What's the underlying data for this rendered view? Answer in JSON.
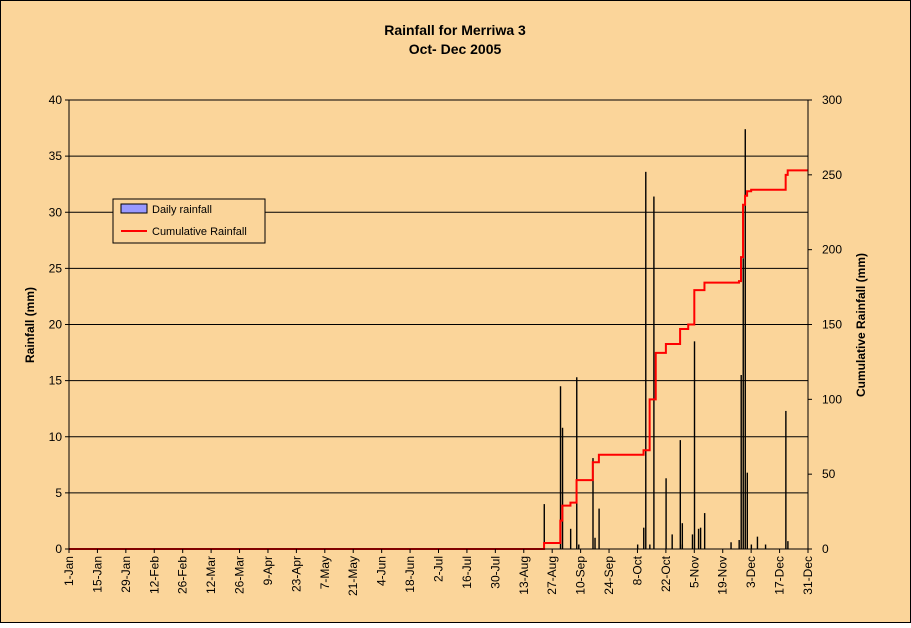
{
  "chart_data": {
    "type": "bar+line",
    "title": "Rainfall for Merriwa 3",
    "subtitle": "Oct- Dec 2005",
    "ylabel": "Rainfall (mm)",
    "y2label": "Cumulative Rainfall (mm)",
    "ylim": [
      0,
      40
    ],
    "y2lim": [
      0,
      300
    ],
    "yticks": [
      "0",
      "5",
      "10",
      "15",
      "20",
      "25",
      "30",
      "35",
      "40"
    ],
    "y2ticks": [
      "0",
      "50",
      "100",
      "150",
      "200",
      "250",
      "300"
    ],
    "xticks": [
      "1-Jan",
      "15-Jan",
      "29-Jan",
      "12-Feb",
      "26-Feb",
      "12-Mar",
      "26-Mar",
      "9-Apr",
      "23-Apr",
      "7-May",
      "21-May",
      "4-Jun",
      "18-Jun",
      "2-Jul",
      "16-Jul",
      "30-Jul",
      "13-Aug",
      "27-Aug",
      "10-Sep",
      "24-Sep",
      "8-Oct",
      "22-Oct",
      "5-Nov",
      "19-Nov",
      "3-Dec",
      "17-Dec",
      "31-Dec"
    ],
    "grid": true,
    "legend_position": "upper-left",
    "colors": {
      "background": "#fbd59a",
      "bar": "#000000",
      "bar_swatch": "#9999ff",
      "line": "#ff0000"
    },
    "series": [
      {
        "name": "Daily rainfall",
        "type": "bar",
        "axis": "left",
        "x": [
          "23-Aug",
          "31-Aug",
          "1-Sep",
          "5-Sep",
          "8-Sep",
          "9-Sep",
          "16-Sep",
          "17-Sep",
          "19-Sep",
          "30-Oct",
          "8-Oct",
          "11-Oct",
          "12-Oct",
          "14-Oct",
          "16-Oct",
          "22-Oct",
          "25-Oct",
          "29-Oct",
          "30-Oct",
          "4-Nov",
          "5-Nov",
          "7-Nov",
          "8-Nov",
          "10-Nov",
          "23-Nov",
          "27-Nov",
          "28-Nov",
          "29-Nov",
          "30-Nov",
          "1-Dec",
          "3-Dec",
          "6-Dec",
          "10-Dec",
          "20-Dec",
          "21-Dec"
        ],
        "values": [
          4.0,
          14.5,
          10.8,
          1.8,
          15.3,
          0.4,
          8.1,
          1.0,
          3.6,
          0.4,
          0.4,
          1.9,
          33.6,
          0.4,
          31.4,
          6.3,
          1.3,
          9.7,
          2.3,
          1.3,
          18.5,
          1.8,
          1.9,
          3.2,
          0.6,
          0.8,
          15.5,
          25.9,
          37.4,
          6.8,
          0.4,
          1.1,
          0.4,
          12.3,
          0.7
        ]
      },
      {
        "name": "Cumulative Rainfall",
        "type": "line",
        "axis": "right",
        "x": [
          "1-Jan",
          "23-Aug",
          "31-Aug",
          "1-Sep",
          "5-Sep",
          "8-Sep",
          "16-Sep",
          "19-Sep",
          "11-Oct",
          "14-Oct",
          "16-Oct",
          "17-Oct",
          "22-Oct",
          "29-Oct",
          "2-Nov",
          "5-Nov",
          "10-Nov",
          "27-Nov",
          "28-Nov",
          "29-Nov",
          "30-Nov",
          "1-Dec",
          "3-Dec",
          "20-Dec",
          "21-Dec",
          "31-Dec"
        ],
        "values": [
          0,
          4,
          19,
          29,
          31,
          46,
          58,
          63,
          66,
          100,
          100,
          131,
          137,
          147,
          150,
          173,
          178,
          179,
          195,
          230,
          236,
          239,
          240,
          250,
          253,
          253
        ]
      }
    ]
  }
}
